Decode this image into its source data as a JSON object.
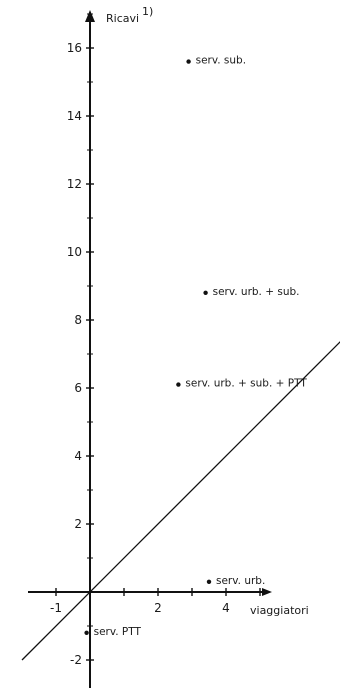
{
  "chart_data": {
    "type": "scatter",
    "title": "",
    "xlabel": "viaggiatori",
    "ylabel": "Ricavi",
    "ylabel_superscript": "1)",
    "xlim": [
      -1.8,
      7.5
    ],
    "ylim": [
      -2.6,
      17.2
    ],
    "x_ticks": [
      -1,
      2,
      4
    ],
    "y_ticks": [
      -2,
      2,
      4,
      6,
      8,
      10,
      12,
      14,
      16
    ],
    "grid": false,
    "reference_line": {
      "slope": 1,
      "intercept": 0,
      "x_range": [
        -2,
        7.5
      ]
    },
    "points": [
      {
        "label": "serv. sub.",
        "x": 2.9,
        "y": 15.6
      },
      {
        "label": "serv. urb. + sub.",
        "x": 3.4,
        "y": 8.8
      },
      {
        "label": "serv. urb. + sub. + PTT",
        "x": 2.6,
        "y": 6.1
      },
      {
        "label": "serv. urb.",
        "x": 3.5,
        "y": 0.3
      },
      {
        "label": "serv. PTT",
        "x": -0.1,
        "y": -1.2
      }
    ]
  }
}
